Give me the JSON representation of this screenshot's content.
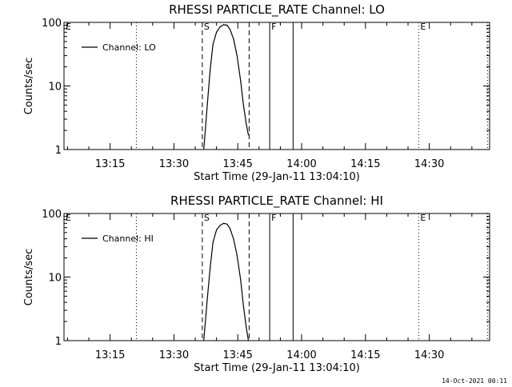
{
  "chart_data": [
    {
      "type": "line",
      "title": "RHESSI PARTICLE_RATE Channel: LO",
      "xlabel": "Start Time (29-Jan-11 13:04:10)",
      "ylabel": "Counts/sec",
      "y_scale": "log",
      "ylim": [
        1,
        100
      ],
      "xlim": [
        "13:04:10",
        "14:44:10"
      ],
      "x_ticks": [
        "13:15",
        "13:30",
        "13:45",
        "14:00",
        "14:15",
        "14:30"
      ],
      "y_ticks": [
        "1",
        "10",
        "100"
      ],
      "legend": "top-left",
      "series": [
        {
          "name": "Channel: LO",
          "x": [
            "13:37:00",
            "13:37:50",
            "13:38:30",
            "13:39:10",
            "13:40:00",
            "13:40:50",
            "13:41:40",
            "13:42:30",
            "13:43:10",
            "13:44:00",
            "13:44:50",
            "13:45:40",
            "13:46:20",
            "13:47:00",
            "13:47:30"
          ],
          "y": [
            1.0,
            5.0,
            18,
            45,
            70,
            85,
            92,
            90,
            78,
            55,
            30,
            12,
            5,
            2.5,
            1.7
          ]
        }
      ],
      "markers": [
        {
          "label": "E",
          "x": "13:04:10",
          "style": "dotted"
        },
        {
          "label": "",
          "x": "13:21:10",
          "style": "dotted"
        },
        {
          "label": "S",
          "x": "13:36:40",
          "style": "dashed"
        },
        {
          "label": "",
          "x": "13:47:40",
          "style": "dashed"
        },
        {
          "label": "F",
          "x": "13:52:30",
          "style": "solid"
        },
        {
          "label": "",
          "x": "13:58:00",
          "style": "solid"
        },
        {
          "label": "E",
          "x": "14:27:30",
          "style": "dotted"
        },
        {
          "label": "",
          "x": "14:43:40",
          "style": "dotted"
        }
      ]
    },
    {
      "type": "line",
      "title": "RHESSI PARTICLE_RATE Channel: HI",
      "xlabel": "Start Time (29-Jan-11 13:04:10)",
      "ylabel": "Counts/sec",
      "y_scale": "log",
      "ylim": [
        1,
        100
      ],
      "xlim": [
        "13:04:10",
        "14:44:10"
      ],
      "x_ticks": [
        "13:15",
        "13:30",
        "13:45",
        "14:00",
        "14:15",
        "14:30"
      ],
      "y_ticks": [
        "1",
        "10",
        "100"
      ],
      "legend": "top-left",
      "series": [
        {
          "name": "Channel: HI",
          "x": [
            "13:37:00",
            "13:37:50",
            "13:38:30",
            "13:39:10",
            "13:40:00",
            "13:40:50",
            "13:41:40",
            "13:42:30",
            "13:43:10",
            "13:44:00",
            "13:44:50",
            "13:45:40",
            "13:46:20",
            "13:47:00",
            "13:47:30"
          ],
          "y": [
            1.0,
            4.5,
            14,
            35,
            55,
            65,
            70,
            68,
            58,
            40,
            22,
            9,
            3.5,
            1.6,
            1.0
          ]
        }
      ],
      "markers": [
        {
          "label": "E",
          "x": "13:04:10",
          "style": "dotted"
        },
        {
          "label": "",
          "x": "13:21:10",
          "style": "dotted"
        },
        {
          "label": "S",
          "x": "13:36:40",
          "style": "dashed"
        },
        {
          "label": "",
          "x": "13:47:40",
          "style": "dashed"
        },
        {
          "label": "F",
          "x": "13:52:30",
          "style": "solid"
        },
        {
          "label": "",
          "x": "13:58:00",
          "style": "solid"
        },
        {
          "label": "E",
          "x": "14:27:30",
          "style": "dotted"
        },
        {
          "label": "",
          "x": "14:43:40",
          "style": "dotted"
        }
      ]
    }
  ],
  "footer": {
    "timestamp": "14-Oct-2021 00:11"
  }
}
